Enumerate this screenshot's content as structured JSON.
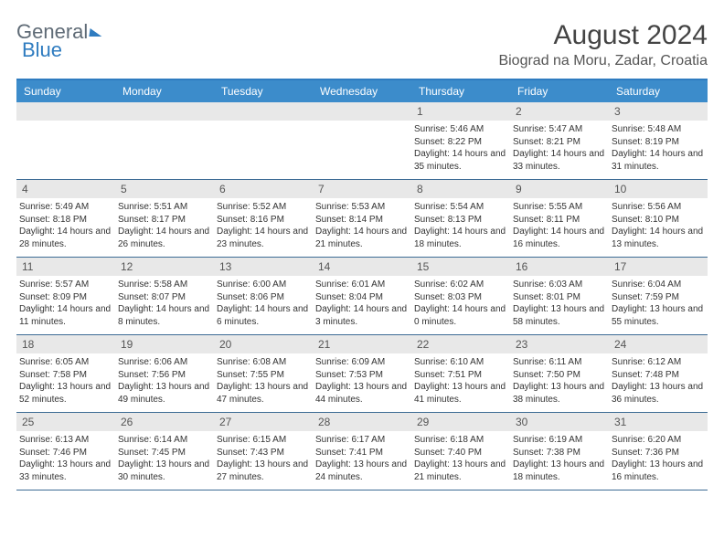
{
  "logo": {
    "part1": "General",
    "part2": "Blue"
  },
  "header": {
    "month_title": "August 2024",
    "location": "Biograd na Moru, Zadar, Croatia"
  },
  "colors": {
    "header_bar": "#3c8ccb",
    "header_border": "#2f7cc0",
    "daynum_bg": "#e8e8e8",
    "text": "#333333"
  },
  "day_names": [
    "Sunday",
    "Monday",
    "Tuesday",
    "Wednesday",
    "Thursday",
    "Friday",
    "Saturday"
  ],
  "weeks": [
    [
      null,
      null,
      null,
      null,
      {
        "n": "1",
        "sr": "5:46 AM",
        "ss": "8:22 PM",
        "dl": "14 hours and 35 minutes."
      },
      {
        "n": "2",
        "sr": "5:47 AM",
        "ss": "8:21 PM",
        "dl": "14 hours and 33 minutes."
      },
      {
        "n": "3",
        "sr": "5:48 AM",
        "ss": "8:19 PM",
        "dl": "14 hours and 31 minutes."
      }
    ],
    [
      {
        "n": "4",
        "sr": "5:49 AM",
        "ss": "8:18 PM",
        "dl": "14 hours and 28 minutes."
      },
      {
        "n": "5",
        "sr": "5:51 AM",
        "ss": "8:17 PM",
        "dl": "14 hours and 26 minutes."
      },
      {
        "n": "6",
        "sr": "5:52 AM",
        "ss": "8:16 PM",
        "dl": "14 hours and 23 minutes."
      },
      {
        "n": "7",
        "sr": "5:53 AM",
        "ss": "8:14 PM",
        "dl": "14 hours and 21 minutes."
      },
      {
        "n": "8",
        "sr": "5:54 AM",
        "ss": "8:13 PM",
        "dl": "14 hours and 18 minutes."
      },
      {
        "n": "9",
        "sr": "5:55 AM",
        "ss": "8:11 PM",
        "dl": "14 hours and 16 minutes."
      },
      {
        "n": "10",
        "sr": "5:56 AM",
        "ss": "8:10 PM",
        "dl": "14 hours and 13 minutes."
      }
    ],
    [
      {
        "n": "11",
        "sr": "5:57 AM",
        "ss": "8:09 PM",
        "dl": "14 hours and 11 minutes."
      },
      {
        "n": "12",
        "sr": "5:58 AM",
        "ss": "8:07 PM",
        "dl": "14 hours and 8 minutes."
      },
      {
        "n": "13",
        "sr": "6:00 AM",
        "ss": "8:06 PM",
        "dl": "14 hours and 6 minutes."
      },
      {
        "n": "14",
        "sr": "6:01 AM",
        "ss": "8:04 PM",
        "dl": "14 hours and 3 minutes."
      },
      {
        "n": "15",
        "sr": "6:02 AM",
        "ss": "8:03 PM",
        "dl": "14 hours and 0 minutes."
      },
      {
        "n": "16",
        "sr": "6:03 AM",
        "ss": "8:01 PM",
        "dl": "13 hours and 58 minutes."
      },
      {
        "n": "17",
        "sr": "6:04 AM",
        "ss": "7:59 PM",
        "dl": "13 hours and 55 minutes."
      }
    ],
    [
      {
        "n": "18",
        "sr": "6:05 AM",
        "ss": "7:58 PM",
        "dl": "13 hours and 52 minutes."
      },
      {
        "n": "19",
        "sr": "6:06 AM",
        "ss": "7:56 PM",
        "dl": "13 hours and 49 minutes."
      },
      {
        "n": "20",
        "sr": "6:08 AM",
        "ss": "7:55 PM",
        "dl": "13 hours and 47 minutes."
      },
      {
        "n": "21",
        "sr": "6:09 AM",
        "ss": "7:53 PM",
        "dl": "13 hours and 44 minutes."
      },
      {
        "n": "22",
        "sr": "6:10 AM",
        "ss": "7:51 PM",
        "dl": "13 hours and 41 minutes."
      },
      {
        "n": "23",
        "sr": "6:11 AM",
        "ss": "7:50 PM",
        "dl": "13 hours and 38 minutes."
      },
      {
        "n": "24",
        "sr": "6:12 AM",
        "ss": "7:48 PM",
        "dl": "13 hours and 36 minutes."
      }
    ],
    [
      {
        "n": "25",
        "sr": "6:13 AM",
        "ss": "7:46 PM",
        "dl": "13 hours and 33 minutes."
      },
      {
        "n": "26",
        "sr": "6:14 AM",
        "ss": "7:45 PM",
        "dl": "13 hours and 30 minutes."
      },
      {
        "n": "27",
        "sr": "6:15 AM",
        "ss": "7:43 PM",
        "dl": "13 hours and 27 minutes."
      },
      {
        "n": "28",
        "sr": "6:17 AM",
        "ss": "7:41 PM",
        "dl": "13 hours and 24 minutes."
      },
      {
        "n": "29",
        "sr": "6:18 AM",
        "ss": "7:40 PM",
        "dl": "13 hours and 21 minutes."
      },
      {
        "n": "30",
        "sr": "6:19 AM",
        "ss": "7:38 PM",
        "dl": "13 hours and 18 minutes."
      },
      {
        "n": "31",
        "sr": "6:20 AM",
        "ss": "7:36 PM",
        "dl": "13 hours and 16 minutes."
      }
    ]
  ],
  "labels": {
    "sunrise": "Sunrise:",
    "sunset": "Sunset:",
    "daylight": "Daylight:"
  }
}
